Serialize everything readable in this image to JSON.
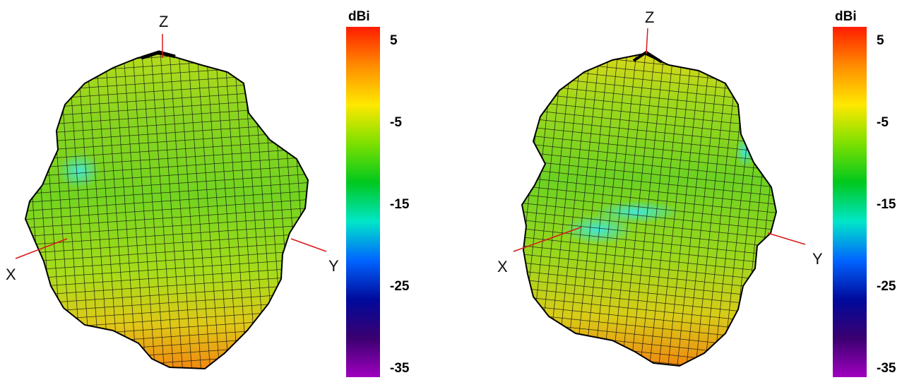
{
  "chart_data": [
    {
      "type": "surface3d",
      "title": "",
      "axes": [
        "X",
        "Y",
        "Z"
      ],
      "colorbar": {
        "unit": "dBi",
        "ticks": [
          5,
          -5,
          -15,
          -25,
          -35
        ],
        "range": [
          -35,
          5
        ],
        "colors": [
          "#ff1c00",
          "#ff8c00",
          "#ffe800",
          "#7de000",
          "#00c81e",
          "#00e6c8",
          "#0064ff",
          "#000a9c",
          "#3a0070",
          "#a000c0"
        ]
      },
      "surface_min_dBi": -14,
      "surface_max_dBi": 2
    },
    {
      "type": "surface3d",
      "title": "",
      "axes": [
        "X",
        "Y",
        "Z"
      ],
      "colorbar": {
        "unit": "dBi",
        "ticks": [
          5,
          -5,
          -15,
          -25,
          -35
        ],
        "range": [
          -35,
          5
        ],
        "colors": [
          "#ff1c00",
          "#ff8c00",
          "#ffe800",
          "#7de000",
          "#00c81e",
          "#00e6c8",
          "#0064ff",
          "#000a9c",
          "#3a0070",
          "#a000c0"
        ]
      },
      "surface_min_dBi": -14,
      "surface_max_dBi": 2
    }
  ]
}
